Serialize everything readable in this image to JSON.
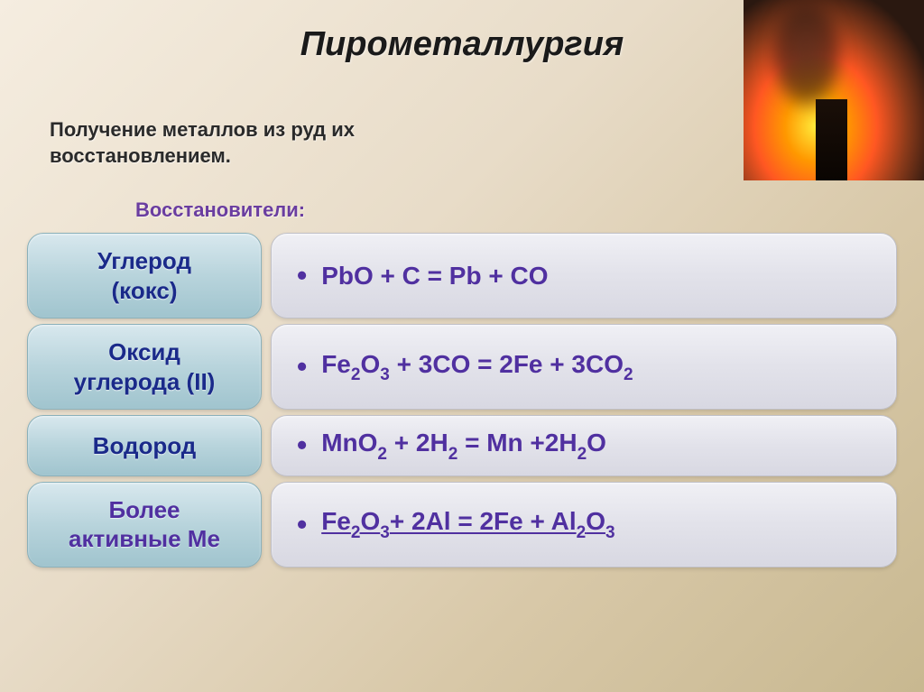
{
  "title": "Пирометаллургия",
  "subtitle_line1": "Получение металлов из руд их",
  "subtitle_line2": "восстановлением.",
  "reducers_label": "Восстановители:",
  "rows": [
    {
      "left_line1": "Углерод",
      "left_line2": "(кокс)",
      "left_color": "#1a2a8a",
      "equation_html": "PbO + C = Pb + CO",
      "underlined": false
    },
    {
      "left_line1": "Оксид",
      "left_line2": "углерода (II)",
      "left_color": "#1a2a8a",
      "equation_html": "Fe<sub>2</sub>O<sub>3</sub> + 3CO = 2Fe + 3CO<sub>2</sub>",
      "underlined": false
    },
    {
      "left_line1": "Водород",
      "left_line2": "",
      "left_color": "#1a2a8a",
      "equation_html": "MnO<sub>2</sub> + 2H<sub>2</sub> = Mn +2H<sub>2</sub>O",
      "underlined": false
    },
    {
      "left_line1": "Более",
      "left_line2": "активные Me",
      "left_color": "#5030a0",
      "equation_html": "Fe<sub>2</sub>O<sub>3</sub>+ 2Al = 2Fe + Al<sub>2</sub>O<sub>3</sub>",
      "underlined": true
    }
  ]
}
